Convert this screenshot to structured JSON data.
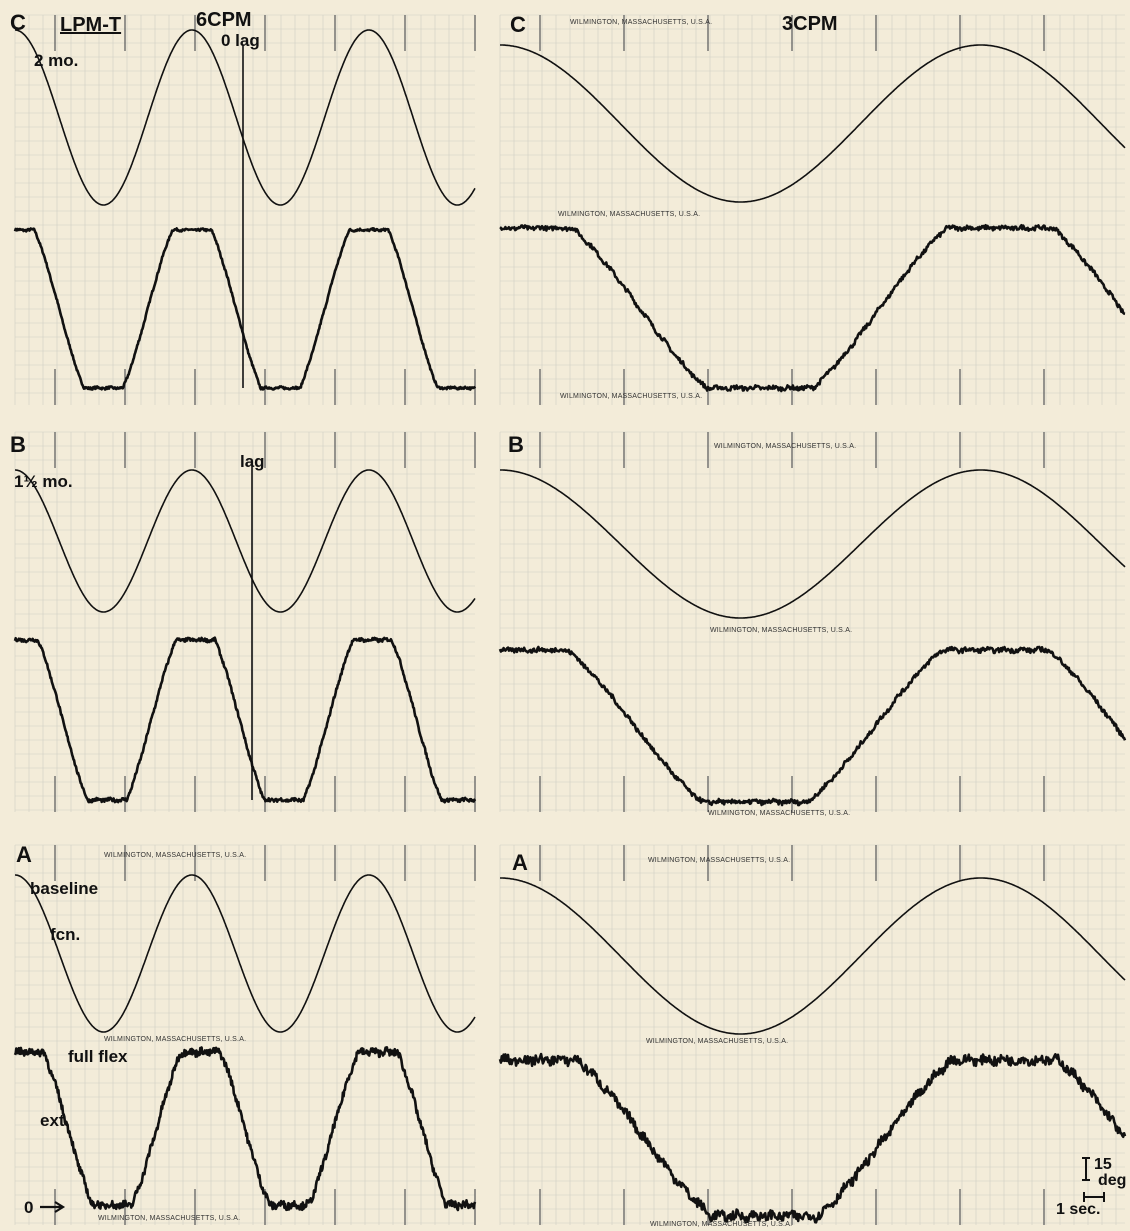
{
  "colors": {
    "paper": "#f3ecd9",
    "grid_major": "#6b6b6b",
    "grid_minor": "#cfcfc4",
    "trace": "#111111"
  },
  "header": {
    "subject": "LPM-T",
    "left_frequency": "6CPM",
    "right_frequency": "3CPM"
  },
  "scale_bar": {
    "amplitude": "15",
    "amplitude_unit": "deg",
    "time": "1 sec."
  },
  "paper_print": "WILMINGTON, MASSACHUSETTS, U.S.A.",
  "chart_data": [
    {
      "type": "line",
      "panel": "C",
      "column": "left",
      "frequency_label": "6CPM",
      "age_label": "2 mo.",
      "annotation": "0 lag",
      "cycles": 2.6,
      "series": [
        {
          "name": "",
          "role": "stimulus",
          "shape": "sine",
          "phase_cycles": 0.0
        },
        {
          "name": "",
          "role": "response",
          "shape": "clipped",
          "phase_cycles": 0.0,
          "noise": 0.5
        }
      ]
    },
    {
      "type": "line",
      "panel": "C",
      "column": "right",
      "frequency_label": "3CPM",
      "age_label": "",
      "annotation": "",
      "cycles": 1.3,
      "series": [
        {
          "name": "",
          "role": "stimulus",
          "shape": "sine",
          "phase_cycles": 0.0
        },
        {
          "name": "",
          "role": "response",
          "shape": "clipped",
          "phase_cycles": 0.04,
          "noise": 0.9
        }
      ]
    },
    {
      "type": "line",
      "panel": "B",
      "column": "left",
      "frequency_label": "",
      "age_label": "1½ mo.",
      "annotation": "lag",
      "cycles": 2.6,
      "series": [
        {
          "name": "",
          "role": "stimulus",
          "shape": "sine",
          "phase_cycles": 0.0
        },
        {
          "name": "",
          "role": "response",
          "shape": "clipped",
          "phase_cycles": 0.02,
          "noise": 0.7
        }
      ]
    },
    {
      "type": "line",
      "panel": "B",
      "column": "right",
      "frequency_label": "",
      "age_label": "",
      "annotation": "",
      "cycles": 1.3,
      "series": [
        {
          "name": "",
          "role": "stimulus",
          "shape": "sine",
          "phase_cycles": 0.0
        },
        {
          "name": "",
          "role": "response",
          "shape": "clipped",
          "phase_cycles": 0.03,
          "noise": 1.0
        }
      ]
    },
    {
      "type": "line",
      "panel": "A",
      "column": "left",
      "frequency_label": "",
      "age_label": "",
      "annotation": "",
      "labels": {
        "baseline": "baseline",
        "fcn": "fcn.",
        "full_flex": "full flex",
        "extension": "ext.",
        "zero": "0"
      },
      "cycles": 2.6,
      "series": [
        {
          "name": "",
          "role": "stimulus",
          "shape": "sine",
          "phase_cycles": 0.0
        },
        {
          "name": "",
          "role": "response",
          "shape": "clipped",
          "phase_cycles": 0.05,
          "noise": 1.6
        }
      ]
    },
    {
      "type": "line",
      "panel": "A",
      "column": "right",
      "frequency_label": "",
      "age_label": "",
      "annotation": "",
      "cycles": 1.3,
      "series": [
        {
          "name": "",
          "role": "stimulus",
          "shape": "sine",
          "phase_cycles": 0.0
        },
        {
          "name": "",
          "role": "response",
          "shape": "clipped",
          "phase_cycles": 0.05,
          "noise": 2.0
        }
      ]
    }
  ]
}
